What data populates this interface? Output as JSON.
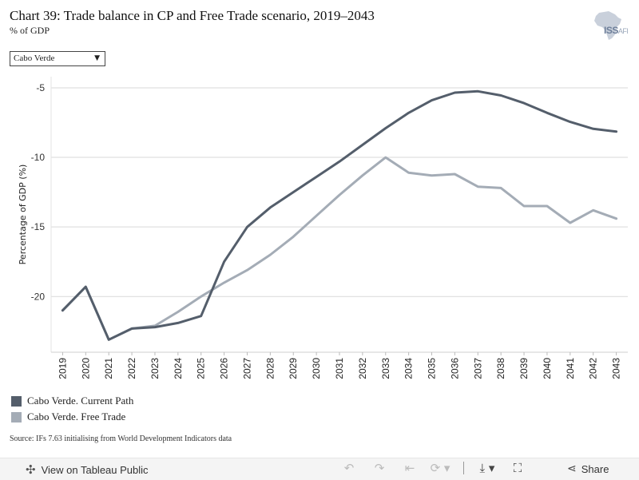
{
  "header": {
    "title": "Chart 39: Trade balance in CP and Free Trade scenario, 2019–2043",
    "subtitle": "% of GDP",
    "logo_text": "ISS",
    "logo_suffix": "AFI"
  },
  "filter": {
    "selected": "Cabo Verde"
  },
  "chart_data": {
    "type": "line",
    "ylabel": "Percentage of GDP (%)",
    "xlabel": "",
    "ylim": [
      -24,
      -4.2
    ],
    "yticks": [
      -5,
      -10,
      -15,
      -20
    ],
    "grid": true,
    "x": [
      2019,
      2020,
      2021,
      2022,
      2023,
      2024,
      2025,
      2026,
      2027,
      2028,
      2029,
      2030,
      2031,
      2032,
      2033,
      2034,
      2035,
      2036,
      2037,
      2038,
      2039,
      2040,
      2041,
      2042,
      2043
    ],
    "series": [
      {
        "name": "Cabo Verde. Current Path",
        "color": "#545e6b",
        "values": [
          -21.0,
          -19.3,
          -23.1,
          -22.3,
          -22.2,
          -21.9,
          -21.4,
          -17.5,
          -15.0,
          -13.6,
          -12.5,
          -11.4,
          -10.3,
          -9.1,
          -7.9,
          -6.8,
          -5.9,
          -5.35,
          -5.25,
          -5.55,
          -6.1,
          -6.8,
          -7.45,
          -7.95,
          -8.15
        ]
      },
      {
        "name": "Cabo Verde. Free Trade",
        "color": "#a4acb6",
        "values": [
          -21.0,
          -19.3,
          -23.1,
          -22.3,
          -22.1,
          -21.1,
          -20.0,
          -19.0,
          -18.1,
          -17.0,
          -15.7,
          -14.2,
          -12.7,
          -11.3,
          -10.0,
          -11.1,
          -11.3,
          -11.2,
          -12.1,
          -12.2,
          -13.5,
          -13.5,
          -14.7,
          -13.8,
          -14.4
        ]
      }
    ],
    "legend_position": "bottom-left"
  },
  "source": "Source: IFs 7.63 initialising from World Development Indicators data",
  "toolbar": {
    "view_label": "View on Tableau Public",
    "share_label": "Share",
    "icons": [
      "tableau-icon",
      "undo-icon",
      "redo-icon",
      "revert-icon",
      "refresh-icon",
      "download-icon",
      "fullscreen-icon",
      "share-icon"
    ]
  }
}
